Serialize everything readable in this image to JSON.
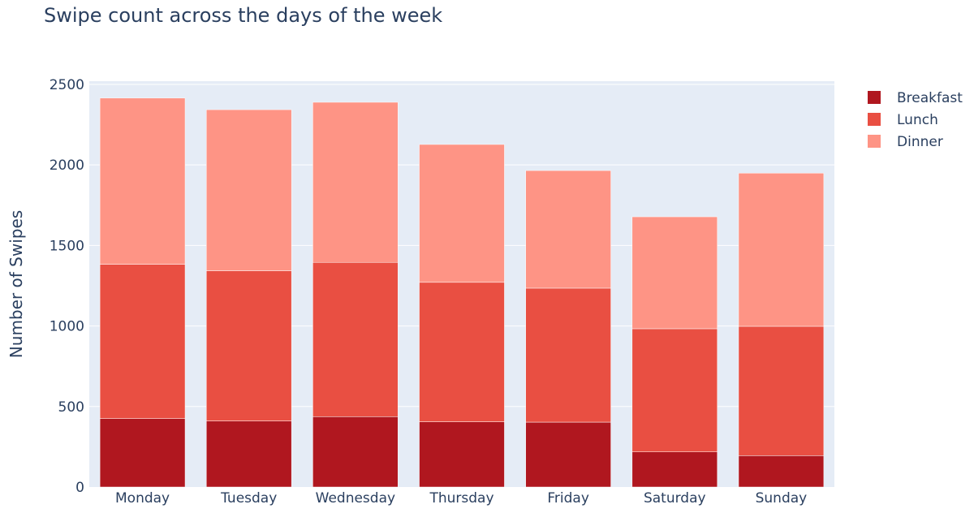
{
  "chart_data": {
    "type": "bar",
    "stacked": true,
    "title": "Swipe count across the days of the week",
    "xlabel": "",
    "ylabel": "Number of Swipes",
    "categories": [
      "Monday",
      "Tuesday",
      "Wednesday",
      "Thursday",
      "Friday",
      "Saturday",
      "Sunday"
    ],
    "ylim": [
      0,
      2520
    ],
    "yticks": [
      0,
      500,
      1000,
      1500,
      2000,
      2500
    ],
    "grid": true,
    "legend_position": "top-right",
    "series": [
      {
        "name": "Breakfast",
        "color": "#b0171f",
        "values": [
          425,
          410,
          437,
          405,
          403,
          218,
          195
        ]
      },
      {
        "name": "Lunch",
        "color": "#e94f42",
        "values": [
          958,
          933,
          958,
          866,
          832,
          765,
          803
        ]
      },
      {
        "name": "Dinner",
        "color": "#fe9485",
        "values": [
          1032,
          1000,
          994,
          856,
          730,
          695,
          951
        ]
      }
    ]
  }
}
